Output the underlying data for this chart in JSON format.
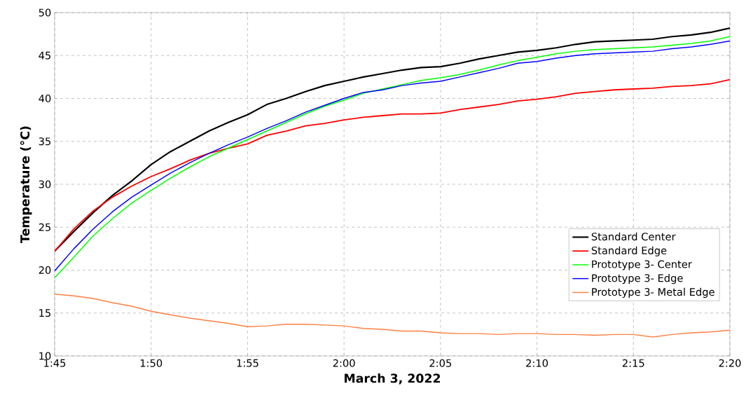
{
  "chart_data": {
    "type": "line",
    "xlabel": "March 3, 2022",
    "ylabel": "Temperature (°C)",
    "x": [
      "2022-03-03T01:45",
      "2022-03-03T01:46",
      "2022-03-03T01:47",
      "2022-03-03T01:48",
      "2022-03-03T01:49",
      "2022-03-03T01:50",
      "2022-03-03T01:51",
      "2022-03-03T01:52",
      "2022-03-03T01:53",
      "2022-03-03T01:54",
      "2022-03-03T01:55",
      "2022-03-03T01:56",
      "2022-03-03T01:57",
      "2022-03-03T01:58",
      "2022-03-03T01:59",
      "2022-03-03T02:00",
      "2022-03-03T02:01",
      "2022-03-03T02:02",
      "2022-03-03T02:03",
      "2022-03-03T02:04",
      "2022-03-03T02:05",
      "2022-03-03T02:06",
      "2022-03-03T02:07",
      "2022-03-03T02:08",
      "2022-03-03T02:09",
      "2022-03-03T02:10",
      "2022-03-03T02:11",
      "2022-03-03T02:12",
      "2022-03-03T02:13",
      "2022-03-03T02:14",
      "2022-03-03T02:15",
      "2022-03-03T02:16",
      "2022-03-03T02:17",
      "2022-03-03T02:18",
      "2022-03-03T02:19",
      "2022-03-03T02:20"
    ],
    "series": [
      {
        "name": "Standard Center",
        "color": "#000000",
        "values": [
          22.2,
          24.5,
          26.7,
          28.7,
          30.4,
          32.3,
          33.8,
          35.0,
          36.2,
          37.2,
          38.1,
          39.3,
          40.0,
          40.8,
          41.5,
          42.0,
          42.5,
          42.9,
          43.3,
          43.6,
          43.7,
          44.1,
          44.6,
          45.0,
          45.4,
          45.6,
          45.9,
          46.3,
          46.6,
          46.7,
          46.8,
          46.9,
          47.2,
          47.4,
          47.7,
          48.2
        ]
      },
      {
        "name": "Standard Edge",
        "color": "#ff0000",
        "values": [
          22.2,
          24.8,
          26.9,
          28.5,
          29.8,
          30.9,
          31.8,
          32.8,
          33.6,
          34.2,
          34.7,
          35.7,
          36.2,
          36.8,
          37.1,
          37.5,
          37.8,
          38.0,
          38.2,
          38.2,
          38.3,
          38.7,
          39.0,
          39.3,
          39.7,
          39.9,
          40.2,
          40.6,
          40.8,
          41.0,
          41.1,
          41.2,
          41.4,
          41.5,
          41.7,
          42.2
        ]
      },
      {
        "name": "Prototype 3- Center",
        "color": "#00ff00",
        "values": [
          19.1,
          21.5,
          24.0,
          26.0,
          27.8,
          29.3,
          30.7,
          32.0,
          33.2,
          34.2,
          35.2,
          36.2,
          37.2,
          38.2,
          39.1,
          39.8,
          40.6,
          41.1,
          41.6,
          42.1,
          42.4,
          42.8,
          43.3,
          43.9,
          44.4,
          44.8,
          45.2,
          45.5,
          45.7,
          45.8,
          45.9,
          46.0,
          46.2,
          46.4,
          46.7,
          47.2
        ]
      },
      {
        "name": "Prototype 3- Edge",
        "color": "#0000ff",
        "values": [
          19.9,
          22.5,
          24.8,
          26.8,
          28.5,
          29.9,
          31.3,
          32.5,
          33.6,
          34.6,
          35.5,
          36.5,
          37.4,
          38.4,
          39.2,
          40.0,
          40.7,
          41.0,
          41.5,
          41.8,
          42.0,
          42.5,
          43.0,
          43.5,
          44.1,
          44.3,
          44.7,
          45.0,
          45.2,
          45.3,
          45.4,
          45.5,
          45.8,
          46.0,
          46.3,
          46.7
        ]
      },
      {
        "name": "Prototype 3- Metal Edge",
        "color": "#ff7f40",
        "values": [
          17.2,
          17.0,
          16.7,
          16.2,
          15.8,
          15.2,
          14.8,
          14.4,
          14.1,
          13.8,
          13.4,
          13.5,
          13.7,
          13.7,
          13.6,
          13.5,
          13.2,
          13.1,
          12.9,
          12.9,
          12.7,
          12.6,
          12.6,
          12.5,
          12.6,
          12.6,
          12.5,
          12.5,
          12.4,
          12.5,
          12.5,
          12.2,
          12.5,
          12.7,
          12.8,
          13.0
        ]
      }
    ],
    "xlim": [
      "2022-03-03T01:45",
      "2022-03-03T02:20"
    ],
    "xticks": [
      {
        "value": "2022-03-03T01:45",
        "label": "1:45"
      },
      {
        "value": "2022-03-03T01:50",
        "label": "1:50"
      },
      {
        "value": "2022-03-03T01:55",
        "label": "1:55"
      },
      {
        "value": "2022-03-03T02:00",
        "label": "2:00"
      },
      {
        "value": "2022-03-03T02:05",
        "label": "2:05"
      },
      {
        "value": "2022-03-03T02:10",
        "label": "2:10"
      },
      {
        "value": "2022-03-03T02:15",
        "label": "2:15"
      },
      {
        "value": "2022-03-03T02:20",
        "label": "2:20"
      }
    ],
    "ylim": [
      10,
      50
    ],
    "yticks": [
      10,
      15,
      20,
      25,
      30,
      35,
      40,
      45,
      50
    ],
    "grid": true,
    "legend": "bottom right",
    "marker": "none",
    "line_style": "solid"
  }
}
